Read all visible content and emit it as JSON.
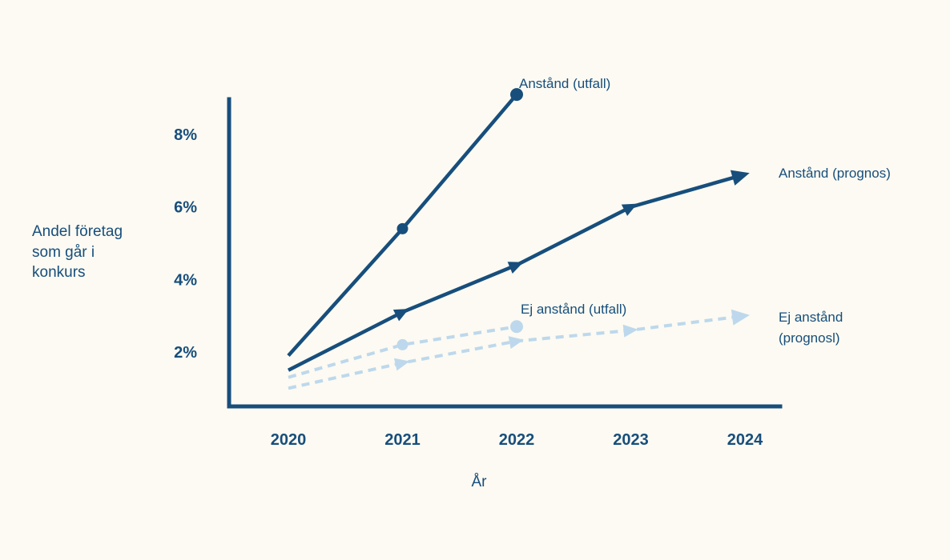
{
  "chart_data": {
    "type": "line",
    "title": "",
    "xlabel": "År",
    "ylabel": "Andel företag som går i konkurs",
    "x_ticks": [
      "2020",
      "2021",
      "2022",
      "2023",
      "2024"
    ],
    "x_tick_values": [
      2020,
      2021,
      2022,
      2023,
      2024
    ],
    "y_ticks": [
      "2%",
      "4%",
      "6%",
      "8%"
    ],
    "y_tick_values": [
      2,
      4,
      6,
      8
    ],
    "ylim": [
      0.5,
      9.5
    ],
    "grid": false,
    "legend_position": "inline-annotations",
    "colors": {
      "dark_blue": "#174E7C",
      "light_blue": "#BDD8EC"
    },
    "series": [
      {
        "name": "Anstånd (utfall)",
        "label": "Anstånd (utfall)",
        "line_style": "solid",
        "color": "dark_blue",
        "marker": "circle",
        "arrow_end": false,
        "x": [
          2020,
          2021,
          2022
        ],
        "values": [
          1.9,
          5.4,
          9.1
        ]
      },
      {
        "name": "Anstånd (prognos)",
        "label": "Anstånd (prognos)",
        "line_style": "solid",
        "color": "dark_blue",
        "marker": "triangle",
        "arrow_end": true,
        "x": [
          2020,
          2021,
          2022,
          2023,
          2024
        ],
        "values": [
          1.5,
          3.1,
          4.4,
          6.0,
          6.9
        ]
      },
      {
        "name": "Ej anstånd (utfall)",
        "label": "Ej anstånd (utfall)",
        "line_style": "dashed",
        "color": "light_blue",
        "marker": "circle",
        "arrow_end": false,
        "x": [
          2020,
          2021,
          2022
        ],
        "values": [
          1.3,
          2.2,
          2.7
        ]
      },
      {
        "name": "Ej anstånd (prognos)",
        "label": "Ej anstånd (prognosl)",
        "line_style": "dashed",
        "color": "light_blue",
        "marker": "triangle",
        "arrow_end": true,
        "x": [
          2020,
          2021,
          2022,
          2023,
          2024
        ],
        "values": [
          1.0,
          1.7,
          2.3,
          2.6,
          3.0
        ]
      }
    ]
  }
}
